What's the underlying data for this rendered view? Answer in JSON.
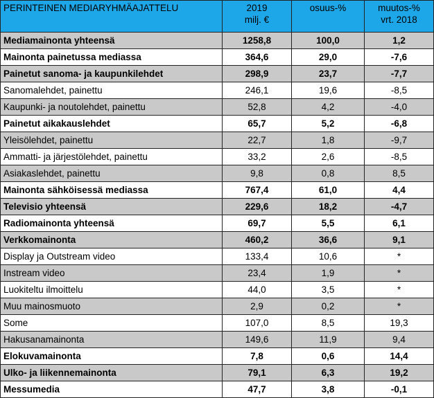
{
  "header": {
    "title": "PERINTEINEN MEDIARYHMÄAJATTELU",
    "col2": [
      "2019",
      "milj. €"
    ],
    "col3": [
      "osuus-%"
    ],
    "col4": [
      "muutos-%",
      "vrt. 2018"
    ]
  },
  "rows": [
    {
      "label": "Mediamainonta yhteensä",
      "value": "1258,8",
      "share": "100,0",
      "change": "1,2",
      "bold": true,
      "shade": true
    },
    {
      "label": "Mainonta painetussa mediassa",
      "value": "364,6",
      "share": "29,0",
      "change": "-7,6",
      "bold": true,
      "shade": false
    },
    {
      "label": "Painetut sanoma- ja kaupunkilehdet",
      "value": "298,9",
      "share": "23,7",
      "change": "-7,7",
      "bold": true,
      "shade": true
    },
    {
      "label": "Sanomalehdet, painettu",
      "value": "246,1",
      "share": "19,6",
      "change": "-8,5",
      "bold": false,
      "shade": false
    },
    {
      "label": "Kaupunki- ja noutolehdet, painettu",
      "value": "52,8",
      "share": "4,2",
      "change": "-4,0",
      "bold": false,
      "shade": true
    },
    {
      "label": "Painetut aikakauslehdet",
      "value": "65,7",
      "share": "5,2",
      "change": "-6,8",
      "bold": true,
      "shade": false
    },
    {
      "label": "Yleisölehdet, painettu",
      "value": "22,7",
      "share": "1,8",
      "change": "-9,7",
      "bold": false,
      "shade": true
    },
    {
      "label": "Ammatti- ja järjestölehdet, painettu",
      "value": "33,2",
      "share": "2,6",
      "change": "-8,5",
      "bold": false,
      "shade": false
    },
    {
      "label": "Asiakaslehdet, painettu",
      "value": "9,8",
      "share": "0,8",
      "change": "8,5",
      "bold": false,
      "shade": true
    },
    {
      "label": "Mainonta sähköisessä mediassa",
      "value": "767,4",
      "share": "61,0",
      "change": "4,4",
      "bold": true,
      "shade": false
    },
    {
      "label": "Televisio yhteensä",
      "value": "229,6",
      "share": "18,2",
      "change": "-4,7",
      "bold": true,
      "shade": true
    },
    {
      "label": "Radiomainonta yhteensä",
      "value": "69,7",
      "share": "5,5",
      "change": "6,1",
      "bold": true,
      "shade": false
    },
    {
      "label": "Verkkomainonta",
      "value": "460,2",
      "share": "36,6",
      "change": "9,1",
      "bold": true,
      "shade": true
    },
    {
      "label": "Display ja Outstream video",
      "value": "133,4",
      "share": "10,6",
      "change": "*",
      "bold": false,
      "shade": false
    },
    {
      "label": "Instream video",
      "value": "23,4",
      "share": "1,9",
      "change": "*",
      "bold": false,
      "shade": true
    },
    {
      "label": "Luokiteltu ilmoittelu",
      "value": "44,0",
      "share": "3,5",
      "change": "*",
      "bold": false,
      "shade": false
    },
    {
      "label": "Muu mainosmuoto",
      "value": "2,9",
      "share": "0,2",
      "change": "*",
      "bold": false,
      "shade": true
    },
    {
      "label": "Some",
      "value": "107,0",
      "share": "8,5",
      "change": "19,3",
      "bold": false,
      "shade": false
    },
    {
      "label": "Hakusanamainonta",
      "value": "149,6",
      "share": "11,9",
      "change": "9,4",
      "bold": false,
      "shade": true
    },
    {
      "label": "Elokuvamainonta",
      "value": "7,8",
      "share": "0,6",
      "change": "14,4",
      "bold": true,
      "shade": false
    },
    {
      "label": "Ulko- ja liikennemainonta",
      "value": "79,1",
      "share": "6,3",
      "change": "19,2",
      "bold": true,
      "shade": true
    },
    {
      "label": "Messumedia",
      "value": "47,7",
      "share": "3,8",
      "change": "-0,1",
      "bold": true,
      "shade": false
    }
  ],
  "colors": {
    "header_bg": "#1ea7e8",
    "shade_bg": "#c9c9c9",
    "border": "#222222"
  }
}
